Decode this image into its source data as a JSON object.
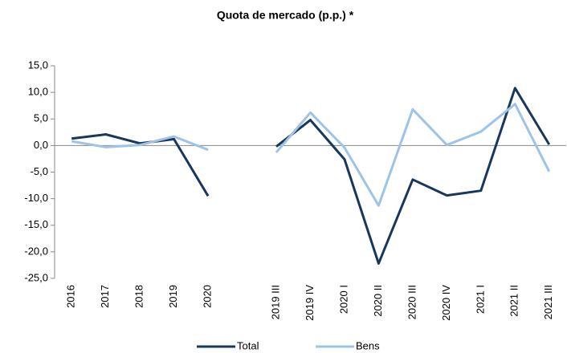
{
  "chart_data": {
    "type": "line",
    "title": "Quota de mercado (p.p.) *",
    "categories": [
      "2016",
      "2017",
      "2018",
      "2019",
      "2020",
      null,
      "2019 III",
      "2019 IV",
      "2020 I",
      "2020 II",
      "2020 III",
      "2020 IV",
      "2021 I",
      "2021 II",
      "2021 III"
    ],
    "series": [
      {
        "name": "Total",
        "color": "#17375e",
        "values": [
          1.3,
          2.1,
          0.4,
          1.2,
          -9.5,
          null,
          -0.2,
          4.8,
          -2.6,
          -22.2,
          -6.4,
          -9.4,
          -8.5,
          10.8,
          0.2
        ]
      },
      {
        "name": "Bens",
        "color": "#9dc3e6",
        "values": [
          0.8,
          -0.3,
          0.1,
          1.7,
          -0.8,
          null,
          -1.3,
          6.2,
          -0.4,
          -11.3,
          6.8,
          0.1,
          2.6,
          7.8,
          -4.9
        ]
      }
    ],
    "ylim": [
      -25,
      15
    ],
    "yticks": [
      {
        "value": -25,
        "label": "-25,0"
      },
      {
        "value": -20,
        "label": "-20,0"
      },
      {
        "value": -15,
        "label": "-15,0"
      },
      {
        "value": -10,
        "label": "-10,0"
      },
      {
        "value": -5,
        "label": "-5,0"
      },
      {
        "value": 0,
        "label": "0,0"
      },
      {
        "value": 5,
        "label": "5,0"
      },
      {
        "value": 10,
        "label": "10,0"
      },
      {
        "value": 15,
        "label": "15,0"
      }
    ],
    "grid": false,
    "legend": "bottom"
  }
}
